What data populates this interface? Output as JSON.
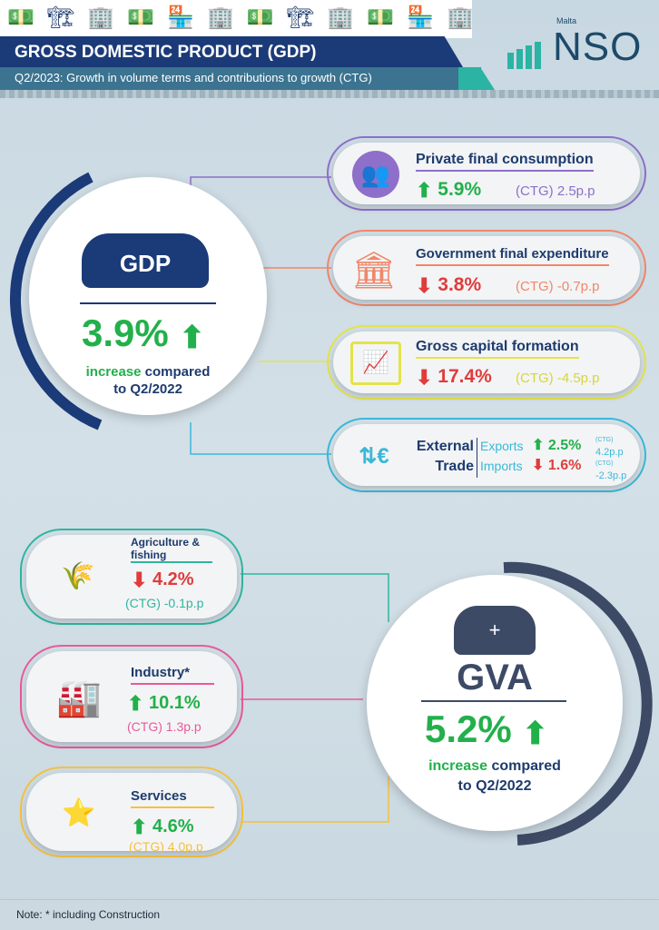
{
  "header": {
    "title": "GROSS DOMESTIC PRODUCT (GDP)",
    "subtitle": "Q2/2023: Growth in volume terms and contributions to growth (CTG)",
    "logo_small": "Malta",
    "logo": "NSO"
  },
  "gdp": {
    "label": "GDP",
    "value": "3.9%",
    "direction": "up",
    "desc_em": "increase",
    "desc_rest": "compared",
    "desc_line2": "to Q2/2022"
  },
  "components": [
    {
      "title": "Private final consumption",
      "value": "5.9%",
      "direction": "up",
      "ctg": "(CTG) 2.5p.p",
      "color": "#8e6fc9",
      "icon": "people-icon"
    },
    {
      "title": "Government final expenditure",
      "value": "3.8%",
      "direction": "down",
      "ctg": "(CTG) -0.7p.p",
      "color": "#f0876a",
      "icon": "government-building-icon"
    },
    {
      "title": "Gross capital formation",
      "value": "17.4%",
      "direction": "down",
      "ctg": "(CTG) -4.5p.p",
      "color": "#e3e34a",
      "icon": "presentation-chart-icon"
    }
  ],
  "trade": {
    "title1": "External",
    "title2": "Trade",
    "color": "#3ab8d8",
    "exports": {
      "label": "Exports",
      "value": "2.5%",
      "direction": "up",
      "ctg_label": "(CTG)",
      "ctg": "4.2p.p"
    },
    "imports": {
      "label": "Imports",
      "value": "1.6%",
      "direction": "down",
      "ctg_label": "(CTG)",
      "ctg": "-2.3p.p"
    }
  },
  "sectors": [
    {
      "title": "Agriculture & fishing",
      "value": "4.2%",
      "direction": "down",
      "ctg": "(CTG) -0.1p.p",
      "color": "#2fb5a0",
      "icon": "agriculture-windmill-icon"
    },
    {
      "title": "Industry*",
      "value": "10.1%",
      "direction": "up",
      "ctg": "(CTG) 1.3p.p",
      "color": "#e85a9a",
      "icon": "factory-icon"
    },
    {
      "title": "Services",
      "value": "4.6%",
      "direction": "up",
      "ctg": "(CTG) 4.0p.p",
      "color": "#f5c040",
      "icon": "service-hand-stars-icon"
    }
  ],
  "gva": {
    "label": "GVA",
    "value": "5.2%",
    "direction": "up",
    "desc_em": "increase",
    "desc_rest": "compared",
    "desc_line2": "to Q2/2022"
  },
  "footer": {
    "note": "Note: * including Construction"
  },
  "colors": {
    "navy": "#1b3a78",
    "up": "#22b04b",
    "down": "#e03c3c",
    "teal": "#2bb3a3"
  }
}
